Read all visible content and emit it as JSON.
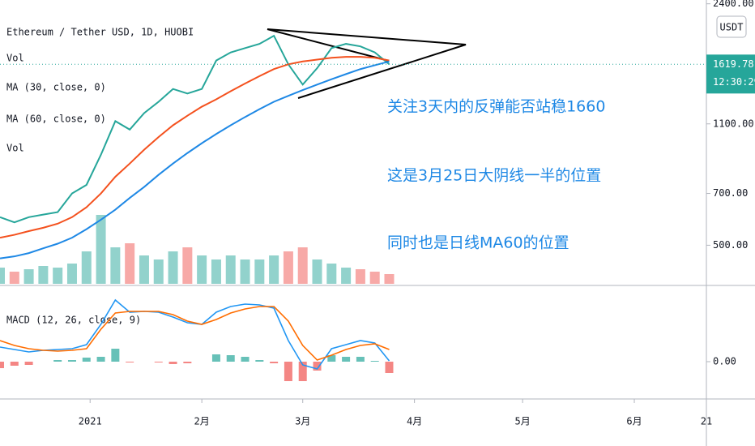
{
  "chart_data": {
    "type": "line",
    "title": "Ethereum / Tether USD, 1D, HUOBI",
    "indicator_labels": [
      "Vol",
      "MA (30, close, 0)",
      "MA (60, close, 0)",
      "Vol"
    ],
    "currency": "USDT",
    "last_price": 1619.78,
    "countdown": "12:30:29",
    "annotations": [
      "关注3天内的反弹能否站稳1660",
      "这是3月25日大阴线一半的位置",
      "同时也是日线MA60的位置"
    ],
    "x": [
      -25,
      -21,
      -17,
      -13,
      -9,
      -5,
      -1,
      3,
      7,
      11,
      15,
      19,
      23,
      27,
      31,
      35,
      39,
      43,
      47,
      51,
      55,
      59,
      63,
      67,
      71,
      75,
      79,
      83
    ],
    "xlim": [
      -25,
      171
    ],
    "xticks": [
      {
        "value": 0,
        "label": "2021"
      },
      {
        "value": 31,
        "label": "2月"
      },
      {
        "value": 59,
        "label": "3月"
      },
      {
        "value": 90,
        "label": "4月"
      },
      {
        "value": 120,
        "label": "5月"
      },
      {
        "value": 151,
        "label": "6月"
      },
      {
        "value": 171,
        "label": "21"
      }
    ],
    "ylim": [
      385,
      2460
    ],
    "log_scale": true,
    "yticks": [
      {
        "value": 2400,
        "label": "2400.00"
      },
      {
        "value": 1100,
        "label": "1100.00"
      },
      {
        "value": 700,
        "label": "700.00"
      },
      {
        "value": 500,
        "label": "500.00"
      }
    ],
    "series": [
      {
        "name": "Close",
        "color": "#26a69a",
        "values": [
          600,
          580,
          600,
          610,
          620,
          700,
          740,
          900,
          1120,
          1060,
          1180,
          1270,
          1380,
          1340,
          1380,
          1660,
          1750,
          1800,
          1850,
          1950,
          1620,
          1420,
          1580,
          1800,
          1850,
          1820,
          1750,
          1620
        ]
      },
      {
        "name": "MA (30, close, 0)",
        "color": "#f4511e",
        "values": [
          525,
          535,
          548,
          560,
          575,
          600,
          640,
          700,
          780,
          850,
          930,
          1010,
          1090,
          1160,
          1230,
          1290,
          1360,
          1430,
          1500,
          1570,
          1620,
          1650,
          1670,
          1690,
          1700,
          1700,
          1690,
          1660
        ]
      },
      {
        "name": "MA (60, close, 0)",
        "color": "#1e88e5",
        "values": [
          459,
          465,
          475,
          490,
          505,
          525,
          555,
          590,
          630,
          680,
          730,
          790,
          850,
          910,
          970,
          1030,
          1090,
          1150,
          1210,
          1270,
          1320,
          1370,
          1420,
          1470,
          1520,
          1570,
          1610,
          1650
        ]
      }
    ],
    "volume": {
      "ylim": [
        0,
        100
      ],
      "up_color": "#26a69a",
      "down_color": "#ef5350",
      "values": [
        20,
        15,
        18,
        22,
        20,
        25,
        40,
        85,
        45,
        50,
        35,
        30,
        40,
        45,
        35,
        30,
        35,
        30,
        30,
        35,
        40,
        45,
        30,
        25,
        20,
        18,
        15,
        12
      ]
    },
    "macd": {
      "title": "MACD (12, 26, close, 9)",
      "ylim": [
        -46,
        94
      ],
      "yticks": [
        {
          "value": 0,
          "label": "0.00"
        }
      ],
      "macd": {
        "color": "#2196f3",
        "values": [
          18,
          15,
          12,
          14,
          15,
          16,
          21,
          46,
          76,
          61,
          62,
          61,
          55,
          48,
          46,
          61,
          68,
          71,
          70,
          66,
          26,
          -4,
          -9,
          16,
          21,
          26,
          23,
          1
        ]
      },
      "signal": {
        "color": "#ff6d00",
        "values": [
          26,
          20,
          16,
          14,
          13,
          14,
          16,
          40,
          60,
          62,
          62,
          62,
          58,
          50,
          46,
          52,
          60,
          65,
          68,
          68,
          50,
          20,
          2,
          8,
          15,
          20,
          22,
          15
        ]
      },
      "histogram": {
        "up_color": "#26a69a",
        "down_color": "#ef5350",
        "values": [
          -8,
          -5,
          -4,
          0,
          2,
          2,
          5,
          6,
          16,
          -1,
          0,
          -1,
          -3,
          -2,
          0,
          9,
          8,
          6,
          2,
          -2,
          -24,
          -24,
          -11,
          8,
          6,
          6,
          1,
          -14
        ]
      }
    }
  }
}
